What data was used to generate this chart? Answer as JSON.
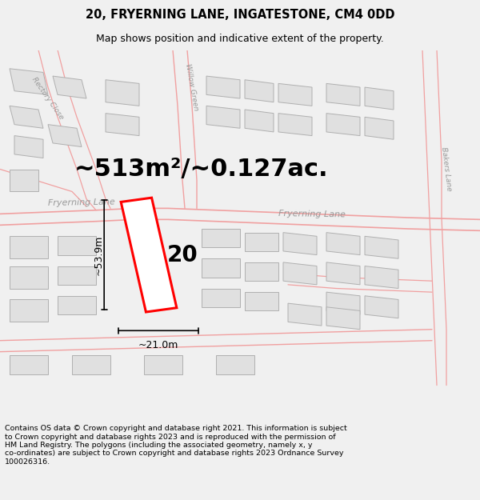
{
  "title": "20, FRYERNING LANE, INGATESTONE, CM4 0DD",
  "subtitle": "Map shows position and indicative extent of the property.",
  "footer": "Contains OS data © Crown copyright and database right 2021. This information is subject\nto Crown copyright and database rights 2023 and is reproduced with the permission of\nHM Land Registry. The polygons (including the associated geometry, namely x, y\nco-ordinates) are subject to Crown copyright and database rights 2023 Ordnance Survey\n100026316.",
  "area_label": "~513m²/~0.127ac.",
  "width_label": "~21.0m",
  "height_label": "~53.9m",
  "property_number": "20",
  "bg_color": "#f0f0f0",
  "map_bg": "#f8f8f8",
  "building_fill": "#e0e0e0",
  "building_edge": "#b0b0b0",
  "highlight_color": "#ff0000",
  "road_line_color": "#f0a0a0",
  "road_label_color": "#999999",
  "dim_line_color": "#000000",
  "title_fontsize": 10.5,
  "subtitle_fontsize": 9,
  "footer_fontsize": 6.8,
  "area_label_fontsize": 22,
  "dim_label_fontsize": 9,
  "property_num_fontsize": 20,
  "road_label_fontsize": 8,
  "small_road_label_fontsize": 6.5
}
